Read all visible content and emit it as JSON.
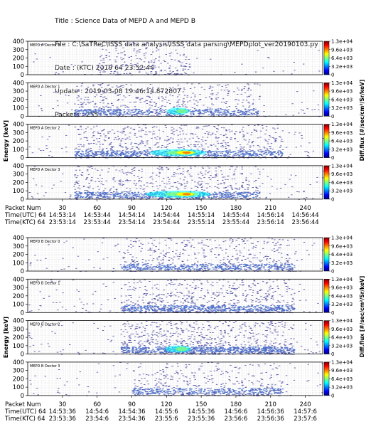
{
  "header": {
    "title": "Title : Science Data of MEPD A and MEPD B",
    "file": "File : C:\\SaTReC\\ISSS data analysis\\ISSS data parsing\\MEPDplot_ver20190103.py",
    "date": "Date : (KTC) 2019 64 23:52:44",
    "update": "Update : 2019-03-08 19:46:14.872807",
    "packets": "Packets : 255"
  },
  "colors": {
    "colormap": [
      "#00007f",
      "#0000ff",
      "#007fff",
      "#00ffff",
      "#7fff7f",
      "#ffff00",
      "#ff7f00",
      "#ff0000",
      "#7f0000"
    ],
    "scatter": "#5a5aa8",
    "grid": "#d9d9d9"
  },
  "chart_data": [
    {
      "group": "MEPD A",
      "type": "heatmap",
      "ylabel": "Energy [keV]",
      "colorbar_label": "Diff.flux [#/sec/cm²/Sr/keV]",
      "colorbar_ticks": [
        "1.3e+04",
        "9.6e+03",
        "6.4e+03",
        "3.2e+03",
        "0"
      ],
      "ylim": [
        0,
        400
      ],
      "yticks": [
        "400",
        "300",
        "200",
        "100",
        "0"
      ],
      "xlim": [
        0,
        255
      ],
      "panels": [
        {
          "label": "MEPD A Dector 0",
          "density": 0.18,
          "core": 0.0,
          "band": [
            60,
            140
          ]
        },
        {
          "label": "MEPD A Dector 1",
          "density": 0.55,
          "core": 0.15,
          "band": [
            40,
            200
          ]
        },
        {
          "label": "MEPD A Dector 2",
          "density": 0.75,
          "core": 0.75,
          "band": [
            40,
            220
          ]
        },
        {
          "label": "MEPD A Dector 3",
          "density": 0.65,
          "core": 0.9,
          "band": [
            40,
            200
          ]
        }
      ],
      "x_axis": {
        "rows": [
          "Packet Num",
          "Time(UTC) 64",
          "Time(KTC) 64"
        ],
        "ticks": [
          {
            "packet": 30,
            "utc": "14:53:14",
            "ktc": "23:53:14"
          },
          {
            "packet": 60,
            "utc": "14:53:44",
            "ktc": "23:53:44"
          },
          {
            "packet": 90,
            "utc": "14:54:14",
            "ktc": "23:54:14"
          },
          {
            "packet": 120,
            "utc": "14:54:44",
            "ktc": "23:54:44"
          },
          {
            "packet": 150,
            "utc": "14:55:14",
            "ktc": "23:55:14"
          },
          {
            "packet": 180,
            "utc": "14:55:44",
            "ktc": "23:55:44"
          },
          {
            "packet": 210,
            "utc": "14:56:14",
            "ktc": "23:56:14"
          },
          {
            "packet": 240,
            "utc": "14:56:44",
            "ktc": "23:56:44"
          }
        ]
      }
    },
    {
      "group": "MEPD B",
      "type": "heatmap",
      "ylabel": "Energy [keV]",
      "colorbar_label": "Diff.flux [#/sec/cm²/Sr/keV]",
      "colorbar_ticks": [
        "1.3e+04",
        "9.6e+03",
        "6.4e+03",
        "3.2e+03",
        "0"
      ],
      "ylim": [
        0,
        400
      ],
      "yticks": [
        "400",
        "300",
        "200",
        "100",
        "0"
      ],
      "xlim": [
        0,
        255
      ],
      "panels": [
        {
          "label": "MEPD B Dector 0",
          "density": 0.5,
          "core": 0.0,
          "band": [
            80,
            230
          ]
        },
        {
          "label": "MEPD B Dector 1",
          "density": 0.7,
          "core": 0.05,
          "band": [
            80,
            230
          ]
        },
        {
          "label": "MEPD B Dector 2",
          "density": 0.85,
          "core": 0.2,
          "band": [
            80,
            230
          ]
        },
        {
          "label": "MEPD B Dector 3",
          "density": 0.4,
          "core": 0.0,
          "band": [
            90,
            220
          ]
        }
      ],
      "x_axis": {
        "rows": [
          "Packet Num",
          "Time(UTC) 64",
          "Time(KTC) 64"
        ],
        "ticks": [
          {
            "packet": 30,
            "utc": "14:53:36",
            "ktc": "23:53:36"
          },
          {
            "packet": 60,
            "utc": "14:54:6",
            "ktc": "23:54:6"
          },
          {
            "packet": 90,
            "utc": "14:54:36",
            "ktc": "23:54:36"
          },
          {
            "packet": 120,
            "utc": "14:55:6",
            "ktc": "23:55:6"
          },
          {
            "packet": 150,
            "utc": "14:55:36",
            "ktc": "23:55:36"
          },
          {
            "packet": 180,
            "utc": "14:56:6",
            "ktc": "23:56:6"
          },
          {
            "packet": 210,
            "utc": "14:56:36",
            "ktc": "23:56:36"
          },
          {
            "packet": 240,
            "utc": "14:57:6",
            "ktc": "23:57:6"
          }
        ]
      }
    }
  ]
}
